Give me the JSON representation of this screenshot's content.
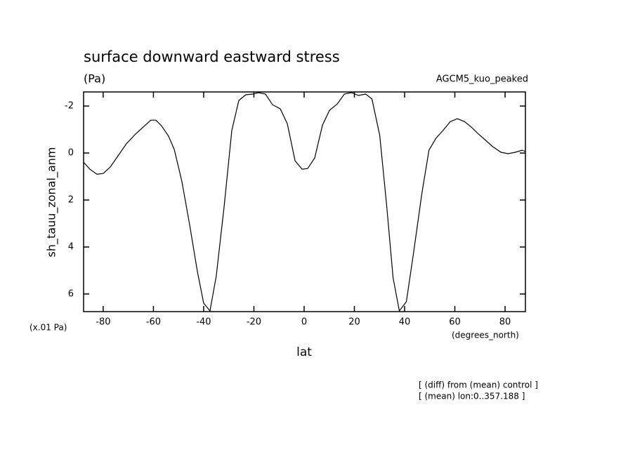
{
  "chart_data": {
    "type": "line",
    "title": "surface downward eastward stress",
    "subtitle": "(Pa)",
    "dataset": "AGCM5_kuo_peaked",
    "y_label": "sh_tauu_zonal_anm",
    "y_units": "(x.01 Pa)",
    "x_units": "(degrees_north)",
    "x_label": "lat",
    "notes": [
      "[ (diff) from (mean) control ]",
      "[ (mean) lon:0..357.188 ]"
    ],
    "xlim": [
      -87.8,
      88.1
    ],
    "ylim": [
      6.75,
      -2.6
    ],
    "xticks": [
      -80,
      -60,
      -40,
      -20,
      0,
      20,
      40,
      60,
      80
    ],
    "yticks": [
      -2,
      0,
      2,
      4,
      6
    ],
    "x": [
      -87.8,
      -85.3,
      -82.5,
      -80,
      -77.2,
      -74.1,
      -70.8,
      -67.1,
      -63.8,
      -61,
      -59,
      -56.8,
      -54,
      -51.7,
      -48.7,
      -45.6,
      -42.5,
      -40,
      -37.5,
      -35,
      -31.9,
      -28.8,
      -26,
      -23.2,
      -20.4,
      -18.2,
      -15.4,
      -12.6,
      -9.5,
      -6.7,
      -3.6,
      -0.8,
      1.4,
      4.2,
      7.3,
      10.1,
      13.2,
      16,
      18.8,
      21.6,
      24.5,
      27,
      30.1,
      32.8,
      35.4,
      37.9,
      40.7,
      43.5,
      46.9,
      49.7,
      52.5,
      55.3,
      58.2,
      61,
      63.8,
      66.6,
      69.4,
      72.3,
      75.1,
      78.4,
      81.2,
      84,
      86.8,
      88.1
    ],
    "series": [
      {
        "color": "#000000",
        "values": [
          0.39,
          0.69,
          0.9,
          0.87,
          0.6,
          0.12,
          -0.39,
          -0.81,
          -1.13,
          -1.4,
          -1.4,
          -1.16,
          -0.72,
          -0.15,
          1.19,
          3.04,
          5.04,
          6.39,
          6.72,
          5.25,
          2.33,
          -0.96,
          -2.24,
          -2.48,
          -2.51,
          -2.57,
          -2.51,
          -2.06,
          -1.88,
          -1.25,
          0.33,
          0.69,
          0.66,
          0.21,
          -1.19,
          -1.82,
          -2.09,
          -2.51,
          -2.57,
          -2.45,
          -2.51,
          -2.3,
          -0.75,
          2.18,
          5.31,
          6.72,
          6.33,
          4.3,
          1.7,
          -0.12,
          -0.63,
          -0.96,
          -1.34,
          -1.46,
          -1.34,
          -1.1,
          -0.81,
          -0.54,
          -0.27,
          -0.03,
          0.03,
          -0.03,
          -0.12,
          -0.06
        ]
      }
    ]
  }
}
